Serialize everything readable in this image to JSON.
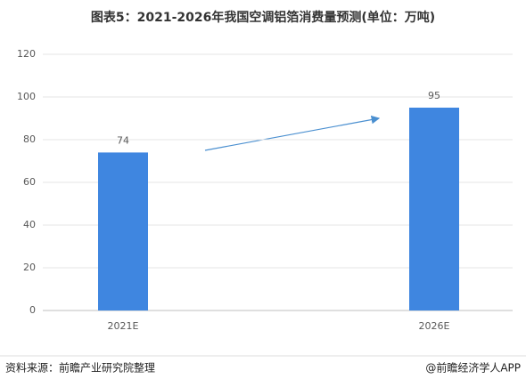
{
  "chart_data": {
    "type": "bar",
    "title": "图表5：2021-2026年我国空调铝箔消费量预测(单位：万吨)",
    "categories": [
      "2021E",
      "2026E"
    ],
    "values": [
      74,
      95
    ],
    "color": "#3f86e0",
    "ylim": [
      0,
      120
    ],
    "yticks": [
      0,
      20,
      40,
      60,
      80,
      100,
      120
    ],
    "grid": true,
    "source": "资料来源：前瞻产业研究院整理",
    "credit": "@前瞻经济学人APP"
  }
}
